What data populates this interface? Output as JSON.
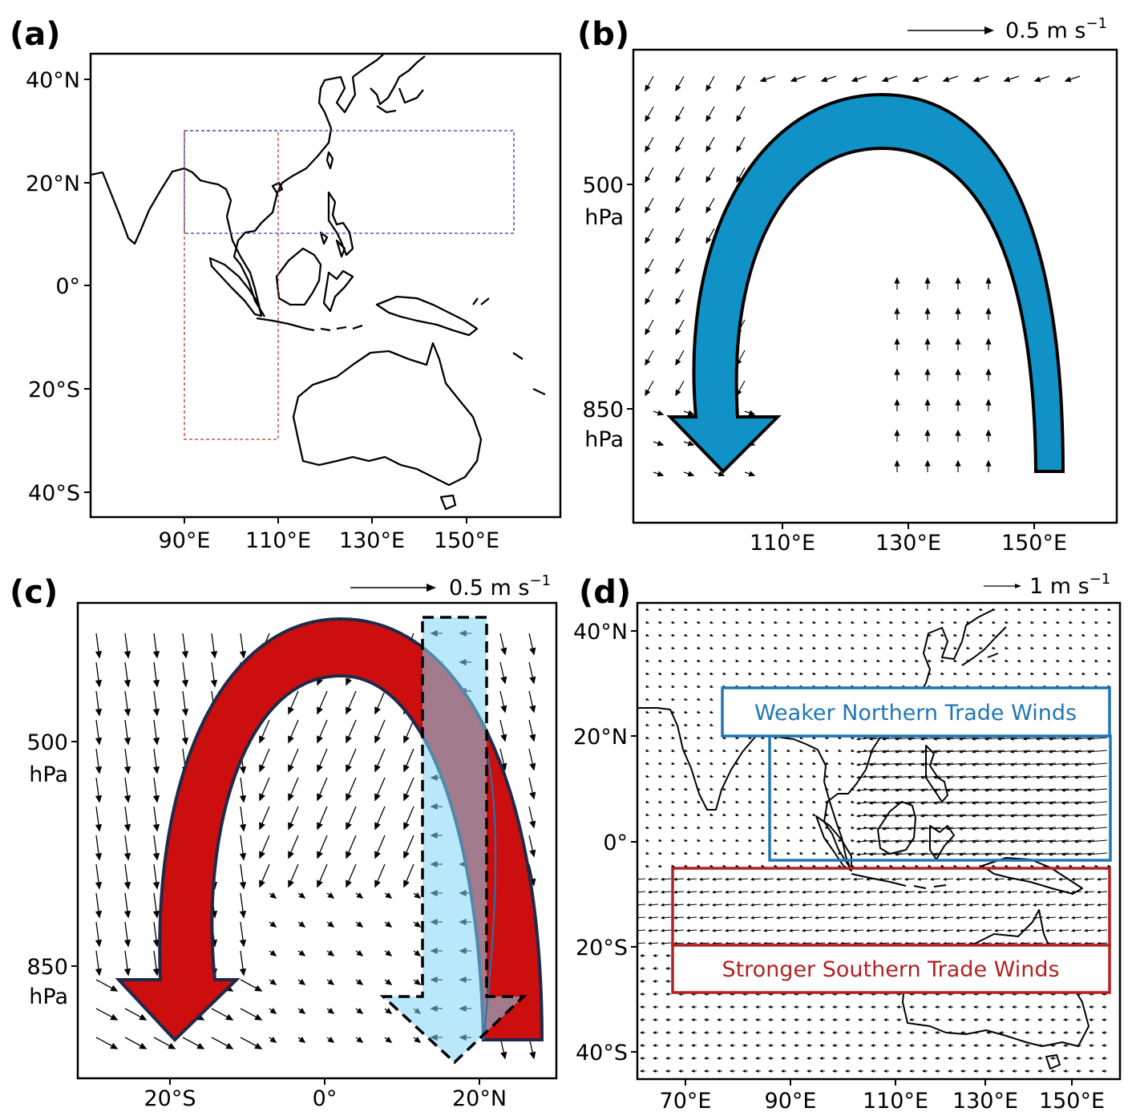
{
  "panels": {
    "a": {
      "label": "(a)",
      "lat_ticks": [
        "40°N",
        "20°N",
        "0°",
        "20°S",
        "40°S"
      ],
      "lon_ticks": [
        "90°E",
        "110°E",
        "130°E",
        "150°E"
      ],
      "box_red": {
        "lon": [
          90,
          110
        ],
        "lat": [
          -30,
          30
        ],
        "color": "#c0392b"
      },
      "box_blue": {
        "lon": [
          90,
          160
        ],
        "lat": [
          10,
          30
        ],
        "color": "#2c3e9e"
      }
    },
    "b": {
      "label": "(b)",
      "ref_vector": "0.5 m s",
      "ref_exponent": "−1",
      "lev_ticks": [
        {
          "value": "500",
          "unit": "hPa"
        },
        {
          "value": "850",
          "unit": "hPa"
        }
      ],
      "lon_ticks": [
        "110°E",
        "130°E",
        "150°E"
      ],
      "arrow_color": "#1192c6"
    },
    "c": {
      "label": "(c)",
      "ref_vector": "0.5 m s",
      "ref_exponent": "−1",
      "lev_ticks": [
        {
          "value": "500",
          "unit": "hPa"
        },
        {
          "value": "850",
          "unit": "hPa"
        }
      ],
      "lat_ticks": [
        "20°S",
        "0°",
        "20°N"
      ],
      "arrow_color": "#cc0e0e",
      "overlay_color": "#7fd6f5"
    },
    "d": {
      "label": "(d)",
      "ref_vector": "1 m s",
      "ref_exponent": "−1",
      "lat_ticks": [
        "40°N",
        "20°N",
        "0°",
        "20°S",
        "40°S"
      ],
      "lon_ticks": [
        "70°E",
        "90°E",
        "110°E",
        "130°E",
        "150°E"
      ],
      "north_label": "Weaker Northern Trade Winds",
      "south_label": "Stronger Southern Trade Winds",
      "north_color": "#1f77b4",
      "south_color": "#b22222"
    }
  }
}
